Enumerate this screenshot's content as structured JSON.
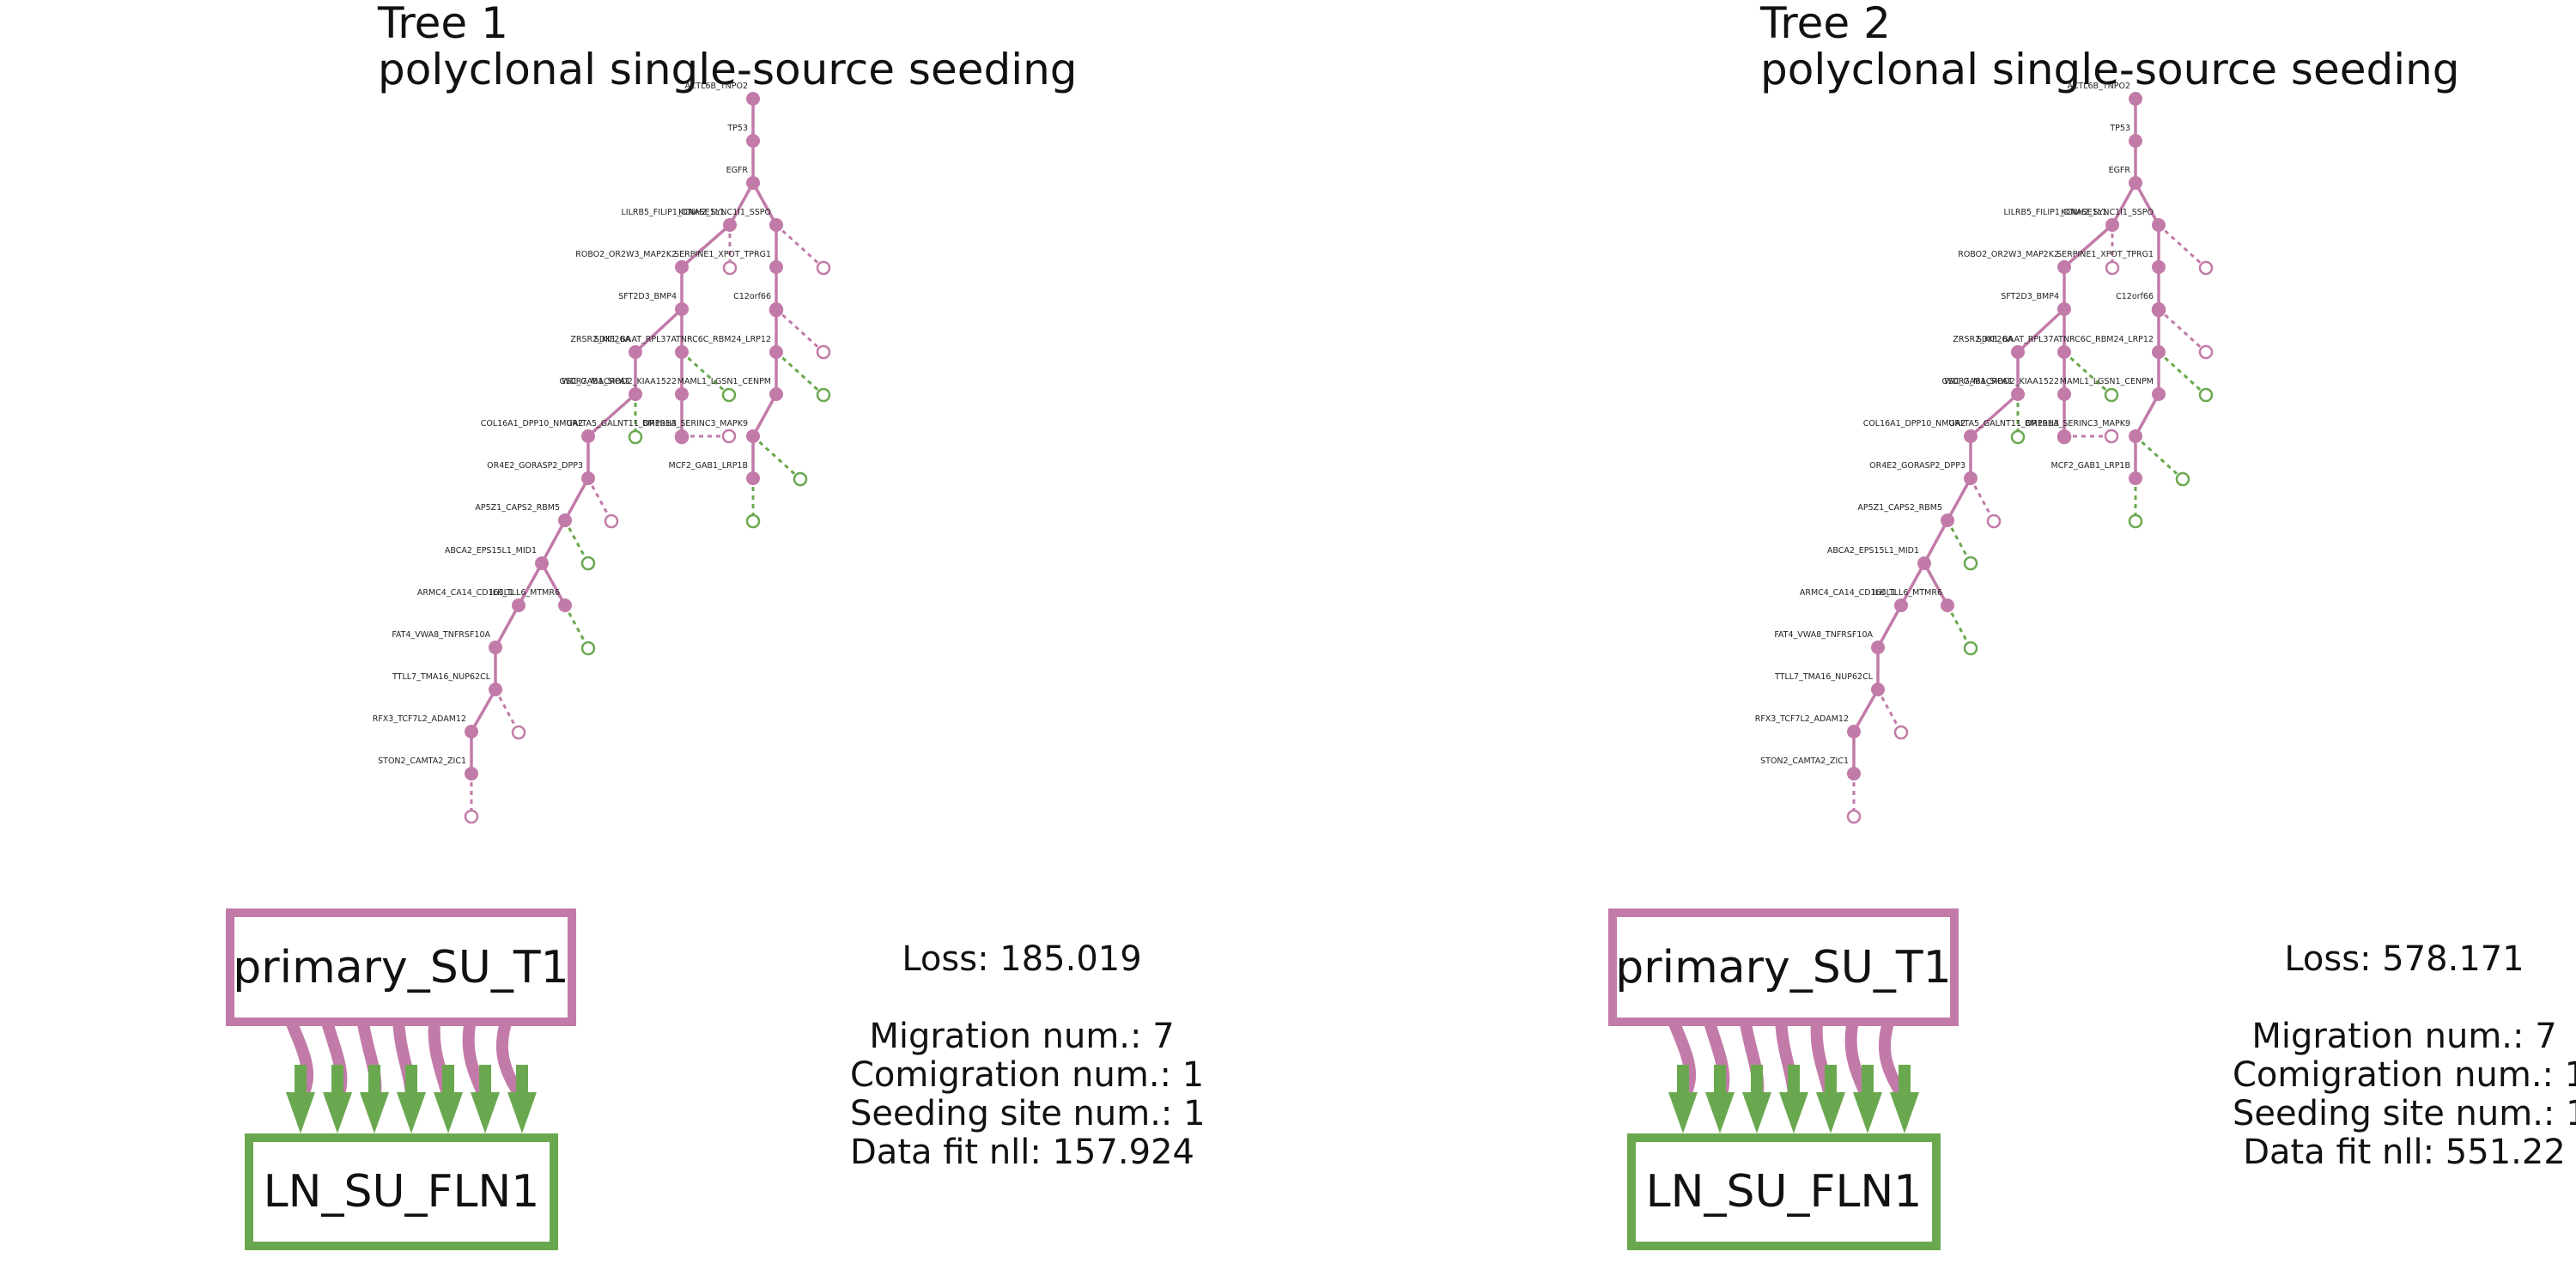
{
  "colors": {
    "primary": "#c27ba8",
    "ln": "#6aa84f"
  },
  "panels": [
    {
      "title_line1": "Tree 1",
      "title_line2": "polyclonal single-source seeding",
      "primary_label": "primary_SU_T1",
      "ln_label": "LN_SU_FLN1",
      "loss": "Loss: 185.019",
      "migration": "Migration num.: 7",
      "comigration": "Comigration num.: 1",
      "seeding": "Seeding site num.: 1",
      "datafit": "Data fit nll: 157.924",
      "migration_count": 7
    },
    {
      "title_line1": "Tree 2",
      "title_line2": "polyclonal single-source seeding",
      "primary_label": "primary_SU_T1",
      "ln_label": "LN_SU_FLN1",
      "loss": "Loss: 578.171",
      "migration": "Migration num.: 7",
      "comigration": "Comigration num.: 1",
      "seeding": "Seeding site num.: 1",
      "datafit": "Data fit nll: 551.22",
      "migration_count": 7
    }
  ],
  "tree": {
    "nodes": [
      {
        "id": "A",
        "label": "ACTL6B_TNPO2",
        "site": "primary"
      },
      {
        "id": "B",
        "label": "TP53",
        "site": "primary"
      },
      {
        "id": "C",
        "label": "EGFR",
        "site": "primary"
      },
      {
        "id": "D",
        "label": "LILRB5_FILIP1_DNASE1L1",
        "site": "primary"
      },
      {
        "id": "E",
        "label": "KCNH2_SYNC1I1_SSPO",
        "site": "primary"
      },
      {
        "id": "F",
        "label": "ROBO2_OR2W3_MAP2K2",
        "site": "primary"
      },
      {
        "id": "G",
        "label": "SERPINE1_XPOT_TPRG1",
        "site": "primary"
      },
      {
        "id": "H",
        "label": "SFT2D3_BMP4",
        "site": "primary"
      },
      {
        "id": "I",
        "label": "C12orf66",
        "site": "primary"
      },
      {
        "id": "J",
        "label": "ZRSR2_KIF26A",
        "site": "primary"
      },
      {
        "id": "K",
        "label": "SDK1_BAAT_RPL37A",
        "site": "primary"
      },
      {
        "id": "L",
        "label": "TNRC6C_RBM24_LRP12",
        "site": "primary"
      },
      {
        "id": "M",
        "label": "GSC_GAB1_SIPA1",
        "site": "primary"
      },
      {
        "id": "N",
        "label": "WDR7_MACROD2_KIAA1522",
        "site": "primary"
      },
      {
        "id": "O",
        "label": "MAML1_LGSN1_CENPM",
        "site": "primary"
      },
      {
        "id": "P",
        "label": "COL16A1_DPP10_NMUR2",
        "site": "primary"
      },
      {
        "id": "Q",
        "label": "GALTA5_GALNT11_OR10H3",
        "site": "primary"
      },
      {
        "id": "R",
        "label": "BMPR1A_SERINC3_MAPK9",
        "site": "primary"
      },
      {
        "id": "S",
        "label": "MCF2_GAB1_LRP1B",
        "site": "primary"
      },
      {
        "id": "T",
        "label": "OR4E2_GORASP2_DPP3",
        "site": "primary"
      },
      {
        "id": "U",
        "label": "AP5Z1_CAPS2_RBM5",
        "site": "primary"
      },
      {
        "id": "V",
        "label": "ABCA2_EPS15L1_MID1",
        "site": "primary"
      },
      {
        "id": "W",
        "label": "ARMC4_CA14_CD163L1",
        "site": "primary"
      },
      {
        "id": "X",
        "label": "ILK_TLL6_MTMR6",
        "site": "primary"
      },
      {
        "id": "Y",
        "label": "FAT4_VWA8_TNFRSF10A",
        "site": "primary"
      },
      {
        "id": "Z",
        "label": "TTLL7_TMA16_NUP62CL",
        "site": "primary"
      },
      {
        "id": "AA",
        "label": "RFX3_TCF7L2_ADAM12",
        "site": "primary"
      },
      {
        "id": "AB",
        "label": "STON2_CAMTA2_ZIC1",
        "site": "primary"
      }
    ]
  }
}
